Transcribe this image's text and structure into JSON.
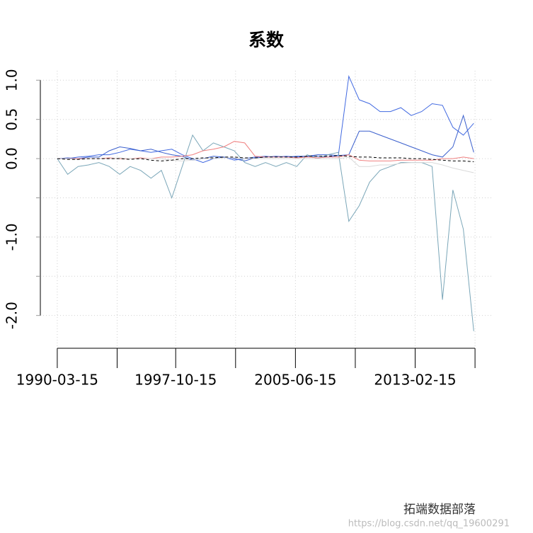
{
  "chart_data": {
    "type": "line",
    "title": "系数",
    "x": [
      0,
      8,
      16,
      24,
      32,
      40,
      48,
      56,
      64,
      72,
      80,
      88,
      96,
      104,
      112,
      120,
      128,
      136,
      144,
      152,
      160,
      168,
      176,
      184,
      192,
      200,
      208,
      216,
      224,
      232,
      240,
      248,
      256,
      264,
      272,
      280,
      288,
      296,
      304,
      312,
      320
    ],
    "series": [
      {
        "color": "#4169e1",
        "values": [
          0,
          0,
          0.02,
          0.03,
          0.05,
          0.05,
          0.08,
          0.12,
          0.1,
          0.08,
          0.1,
          0.12,
          0.05,
          0.0,
          -0.05,
          0.0,
          0.02,
          -0.02,
          0.0,
          0.02,
          0.03,
          0.02,
          0.03,
          0.02,
          0.03,
          0.03,
          0.02,
          0.04,
          1.05,
          0.75,
          0.7,
          0.6,
          0.6,
          0.65,
          0.55,
          0.6,
          0.7,
          0.68,
          0.4,
          0.3,
          0.45
        ]
      },
      {
        "color": "#3a5fcd",
        "values": [
          0,
          0.01,
          0,
          0.02,
          0.02,
          0.1,
          0.15,
          0.13,
          0.1,
          0.12,
          0.08,
          0.05,
          0.03,
          -0.02,
          0,
          0.03,
          0.02,
          0,
          -0.03,
          0.01,
          0.02,
          0.03,
          0.02,
          0.03,
          0.03,
          0.05,
          0.05,
          0.04,
          0.05,
          0.35,
          0.35,
          0.3,
          0.25,
          0.2,
          0.15,
          0.1,
          0.05,
          0.02,
          0.15,
          0.55,
          0.08
        ]
      },
      {
        "color": "#7aa6b8",
        "values": [
          0,
          -0.2,
          -0.1,
          -0.08,
          -0.05,
          -0.1,
          -0.2,
          -0.1,
          -0.15,
          -0.25,
          -0.15,
          -0.5,
          -0.1,
          0.3,
          0.1,
          0.2,
          0.15,
          0.1,
          -0.05,
          -0.1,
          -0.05,
          -0.1,
          -0.05,
          -0.1,
          0.05,
          0.0,
          0.05,
          0.08,
          -0.8,
          -0.6,
          -0.3,
          -0.15,
          -0.1,
          -0.05,
          -0.05,
          -0.05,
          -0.1,
          -1.8,
          -0.4,
          -0.9,
          -2.2
        ]
      },
      {
        "color": "#f08080",
        "values": [
          0,
          0,
          0,
          0,
          0,
          0.01,
          0,
          0,
          0.01,
          0,
          0.02,
          0.02,
          0.03,
          0.05,
          0.1,
          0.12,
          0.15,
          0.22,
          0.2,
          0.03,
          0.02,
          0.02,
          0.02,
          0.01,
          0.02,
          0.01,
          0.02,
          0.02,
          0.05,
          -0.02,
          -0.03,
          -0.03,
          -0.03,
          -0.02,
          -0.02,
          -0.02,
          -0.02,
          0.0,
          0.0,
          0.02,
          0.0
        ]
      },
      {
        "color": "#d9d9d9",
        "values": [
          0,
          0,
          -0.01,
          0,
          0,
          0,
          0.01,
          0,
          0,
          0,
          0,
          -0.02,
          -0.03,
          -0.02,
          0,
          0,
          0.01,
          0.01,
          0,
          0,
          0,
          0,
          0,
          0,
          0,
          0,
          0,
          0,
          0.02,
          -0.1,
          -0.1,
          -0.08,
          -0.08,
          -0.06,
          -0.05,
          -0.05,
          -0.05,
          -0.08,
          -0.12,
          -0.15,
          -0.18
        ]
      },
      {
        "color": "#000000",
        "line_style": "dashed",
        "values": [
          0,
          -0.01,
          -0.01,
          0,
          0,
          0,
          0,
          -0.01,
          0,
          -0.02,
          -0.03,
          -0.02,
          0,
          0,
          0.01,
          0.01,
          0.02,
          0.02,
          0.01,
          0.01,
          0.02,
          0.02,
          0.02,
          0.02,
          0.03,
          0.03,
          0.03,
          0.04,
          0.03,
          0.02,
          0.02,
          0.01,
          0.01,
          0.01,
          0,
          0,
          -0.01,
          -0.02,
          -0.03,
          -0.03,
          -0.04
        ]
      }
    ],
    "xlim": [
      -13,
      334
    ],
    "xticks": [
      {
        "value": 0,
        "label": "1990-03-15"
      },
      {
        "value": 91,
        "label": "1997-10-15"
      },
      {
        "value": 183,
        "label": "2005-06-15"
      },
      {
        "value": 275,
        "label": "2013-02-15"
      }
    ],
    "minor_xticks": [
      46,
      137,
      229,
      321
    ],
    "ylim": [
      -2.4,
      1.12
    ],
    "yticks": [
      {
        "value": 1,
        "label": "1.0"
      },
      0.5,
      {
        "value": 0,
        "label": "0.0"
      },
      {
        "value": -1,
        "label": "-1.0"
      },
      {
        "value": -2,
        "label": "-2.0"
      }
    ],
    "minor_yticks": [
      -0.5,
      -1.5
    ],
    "grid": true
  },
  "watermark": "拓端数据部落",
  "watermark_url": "https://blog.csdn.net/qq_19600291"
}
